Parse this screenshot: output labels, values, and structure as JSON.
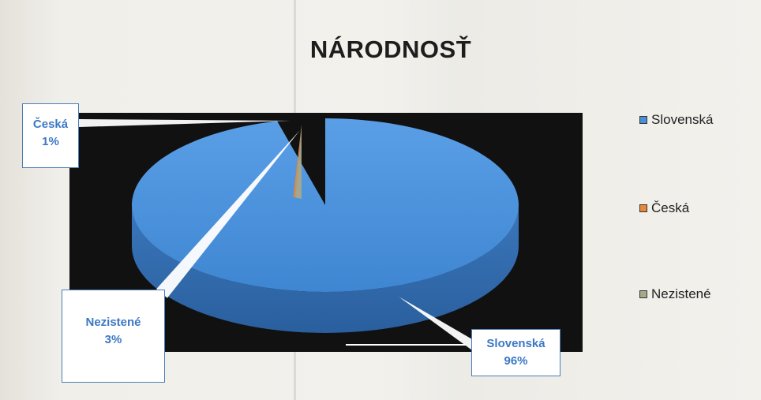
{
  "chart_data": {
    "type": "pie",
    "title": "NÁRODNOSŤ",
    "categories": [
      "Slovenská",
      "Česká",
      "Nezistené"
    ],
    "values": [
      96,
      1,
      3
    ],
    "colors": [
      "#4a90d9",
      "#e8883a",
      "#a8a88a"
    ],
    "labels": [
      {
        "category": "Slovenská",
        "percent": "96%"
      },
      {
        "category": "Česká",
        "percent": "1%"
      },
      {
        "category": "Nezistené",
        "percent": "3%"
      }
    ],
    "legend": {
      "position": "right",
      "items": [
        "Slovenská",
        "Česká",
        "Nezistené"
      ]
    },
    "style": "3d-exploded",
    "background": "#111111"
  }
}
